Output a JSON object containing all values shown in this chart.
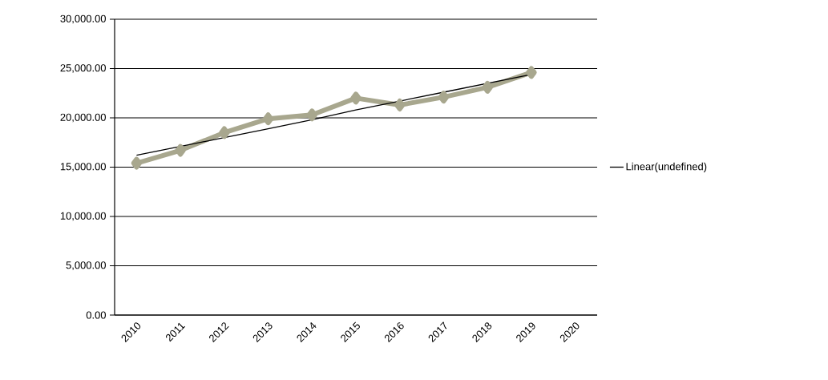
{
  "chart_data": {
    "type": "line",
    "categories": [
      "2010",
      "2011",
      "2012",
      "2013",
      "2014",
      "2015",
      "2016",
      "2017",
      "2018",
      "2019",
      "2020"
    ],
    "series": [
      {
        "color": "#a8a78e",
        "marker": "diamond",
        "values": [
          15400,
          16700,
          18500,
          19900,
          20300,
          22000,
          21300,
          22100,
          23100,
          24600,
          null
        ]
      },
      {
        "name": "Linear(undefined)",
        "color": "#000000",
        "marker": "none",
        "values": [
          16200,
          17100,
          18000,
          18900,
          19800,
          20800,
          21700,
          22600,
          23500,
          24400,
          null
        ]
      }
    ],
    "ylim": [
      0,
      30000
    ],
    "yticks": [
      {
        "value": 0,
        "label": "0.00"
      },
      {
        "value": 5000,
        "label": "5,000.00"
      },
      {
        "value": 10000,
        "label": "10,000.00"
      },
      {
        "value": 15000,
        "label": "15,000.00"
      },
      {
        "value": 20000,
        "label": "20,000.00"
      },
      {
        "value": 25000,
        "label": "25,000.00"
      },
      {
        "value": 30000,
        "label": "30,000.00"
      }
    ],
    "grid": "y",
    "legend": "right"
  }
}
